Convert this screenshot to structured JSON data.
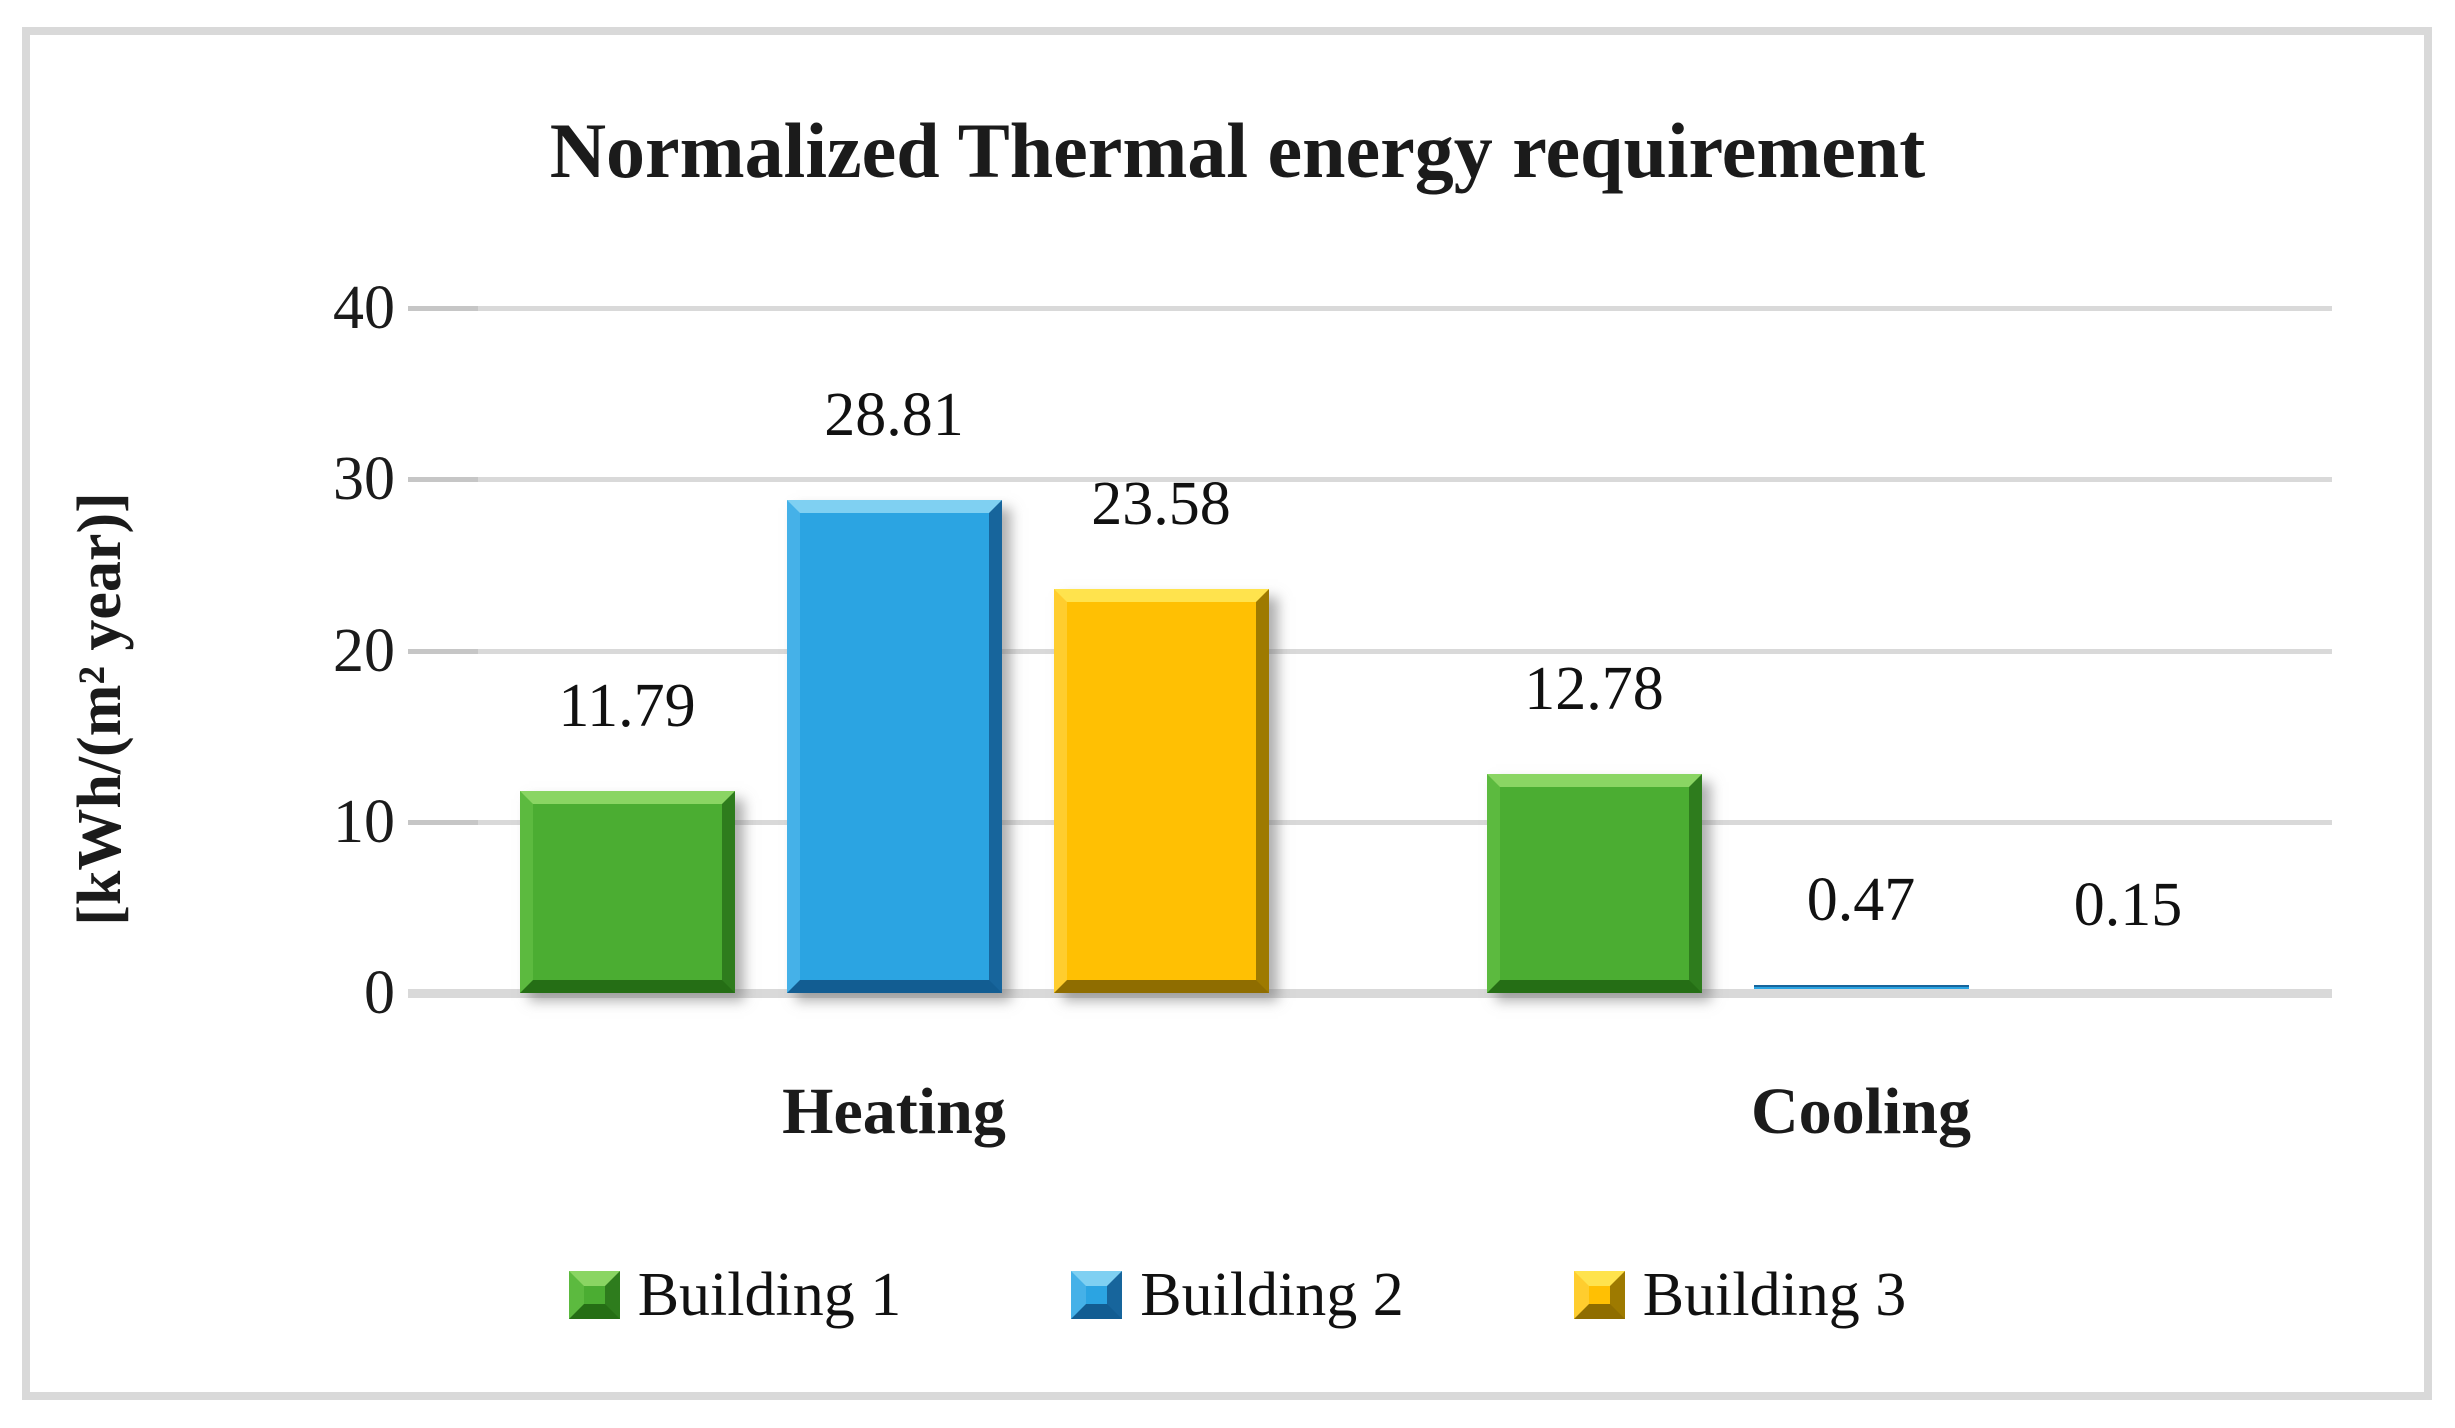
{
  "chart_data": {
    "type": "bar",
    "title": "Normalized Thermal energy requirement",
    "ylabel": "[kWh/(m² year)]",
    "categories": [
      "Heating",
      "Cooling"
    ],
    "series": [
      {
        "name": "Building 1",
        "values": [
          11.79,
          12.78
        ],
        "labels": [
          "11.79",
          "12.78"
        ],
        "color": "#4bad32",
        "bevel_top": "#8ad563",
        "bevel_left": "#5cba3f",
        "bevel_right": "#2e7c1d",
        "bevel_bottom": "#256e15"
      },
      {
        "name": "Building 2",
        "values": [
          28.81,
          0.47
        ],
        "labels": [
          "28.81",
          "0.47"
        ],
        "color": "#2ba4e2",
        "bevel_top": "#7fd0f2",
        "bevel_left": "#45b1e8",
        "bevel_right": "#17659c",
        "bevel_bottom": "#125d92"
      },
      {
        "name": "Building 3",
        "values": [
          23.58,
          0.15
        ],
        "labels": [
          "23.58",
          "0.15"
        ],
        "color": "#ffc003",
        "bevel_top": "#ffe34d",
        "bevel_left": "#ffcd2e",
        "bevel_right": "#9e7a00",
        "bevel_bottom": "#8f6d00"
      }
    ],
    "yticks": [
      0,
      10,
      20,
      30,
      40
    ],
    "ylim": [
      0,
      40
    ],
    "grid": true,
    "legend_position": "bottom",
    "gridline_color": "#d9d9d9",
    "frame_color": "#d9d9d9"
  }
}
